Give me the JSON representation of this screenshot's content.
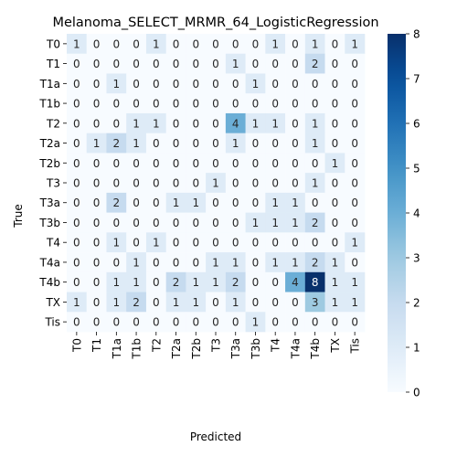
{
  "chart_data": {
    "type": "heatmap",
    "title": "Melanoma_SELECT_MRMR_64_LogisticRegression",
    "xlabel": "Predicted",
    "ylabel": "True",
    "row_labels": [
      "T0",
      "T1",
      "T1a",
      "T1b",
      "T2",
      "T2a",
      "T2b",
      "T3",
      "T3a",
      "T3b",
      "T4",
      "T4a",
      "T4b",
      "TX",
      "Tis"
    ],
    "col_labels": [
      "T0",
      "T1",
      "T1a",
      "T1b",
      "T2",
      "T2a",
      "T2b",
      "T3",
      "T3a",
      "T3b",
      "T4",
      "T4a",
      "T4b",
      "TX",
      "Tis"
    ],
    "values": [
      [
        1,
        0,
        0,
        0,
        1,
        0,
        0,
        0,
        0,
        0,
        1,
        0,
        1,
        0,
        1
      ],
      [
        0,
        0,
        0,
        0,
        0,
        0,
        0,
        0,
        1,
        0,
        0,
        0,
        2,
        0,
        0
      ],
      [
        0,
        0,
        1,
        0,
        0,
        0,
        0,
        0,
        0,
        1,
        0,
        0,
        0,
        0,
        0
      ],
      [
        0,
        0,
        0,
        0,
        0,
        0,
        0,
        0,
        0,
        0,
        0,
        0,
        0,
        0,
        0
      ],
      [
        0,
        0,
        0,
        1,
        1,
        0,
        0,
        0,
        4,
        1,
        1,
        0,
        1,
        0,
        0
      ],
      [
        0,
        1,
        2,
        1,
        0,
        0,
        0,
        0,
        1,
        0,
        0,
        0,
        1,
        0,
        0
      ],
      [
        0,
        0,
        0,
        0,
        0,
        0,
        0,
        0,
        0,
        0,
        0,
        0,
        0,
        1,
        0
      ],
      [
        0,
        0,
        0,
        0,
        0,
        0,
        0,
        1,
        0,
        0,
        0,
        0,
        1,
        0,
        0
      ],
      [
        0,
        0,
        2,
        0,
        0,
        1,
        1,
        0,
        0,
        0,
        1,
        1,
        0,
        0,
        0
      ],
      [
        0,
        0,
        0,
        0,
        0,
        0,
        0,
        0,
        0,
        1,
        1,
        1,
        2,
        0,
        0
      ],
      [
        0,
        0,
        1,
        0,
        1,
        0,
        0,
        0,
        0,
        0,
        0,
        0,
        0,
        0,
        1
      ],
      [
        0,
        0,
        0,
        1,
        0,
        0,
        0,
        1,
        1,
        0,
        1,
        1,
        2,
        1,
        0
      ],
      [
        0,
        0,
        1,
        1,
        0,
        2,
        1,
        1,
        2,
        0,
        0,
        4,
        8,
        1,
        1
      ],
      [
        1,
        0,
        1,
        2,
        0,
        1,
        1,
        0,
        1,
        0,
        0,
        0,
        3,
        1,
        1
      ],
      [
        0,
        0,
        0,
        0,
        0,
        0,
        0,
        0,
        0,
        1,
        0,
        0,
        0,
        0,
        0
      ]
    ],
    "colorbar": {
      "min": 0,
      "max": 8,
      "ticks": [
        0,
        1,
        2,
        3,
        4,
        5,
        6,
        7,
        8
      ],
      "colormap": "Blues"
    },
    "grid": false
  }
}
